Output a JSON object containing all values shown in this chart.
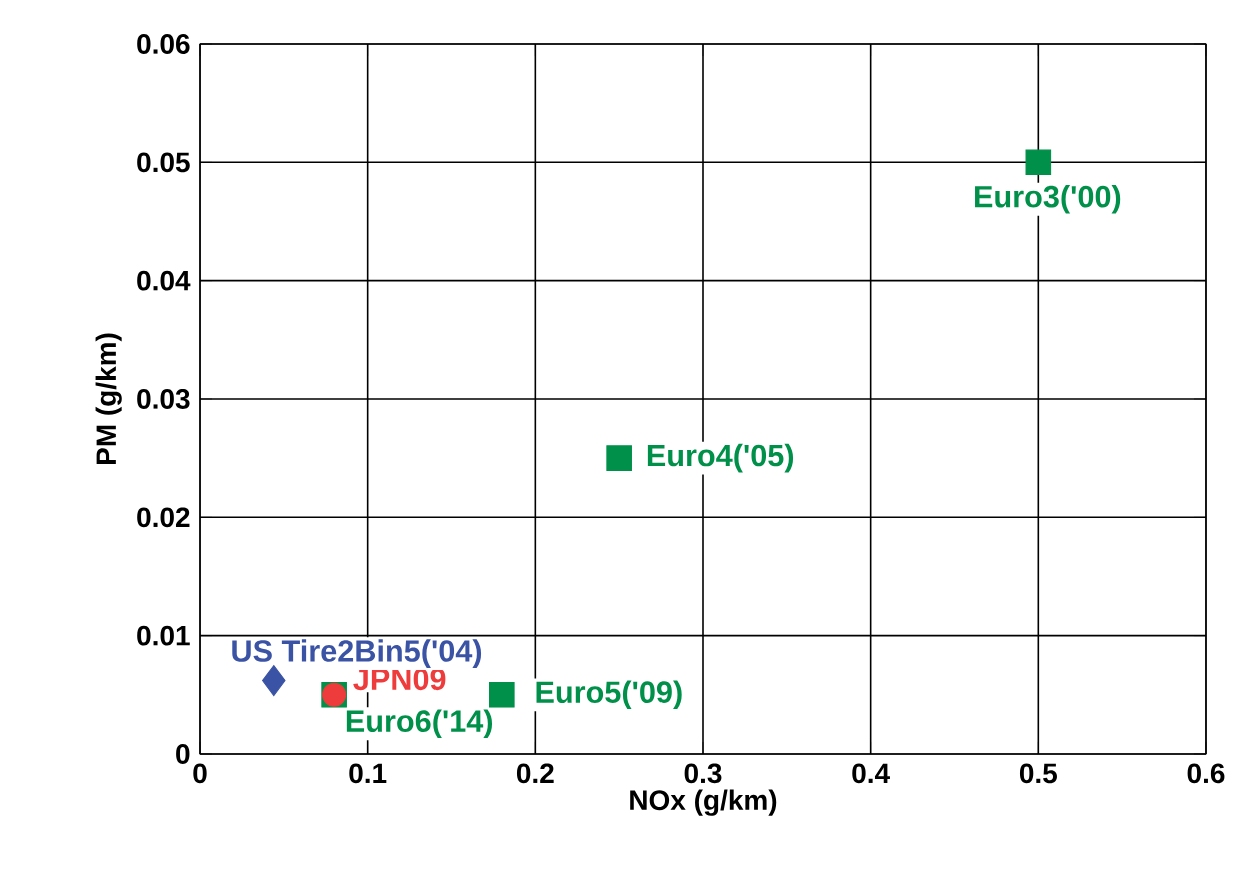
{
  "chart_data": {
    "type": "scatter",
    "xlabel": "NOx (g/km)",
    "ylabel": "PM (g/km)",
    "xlim": [
      0,
      0.6
    ],
    "ylim": [
      0,
      0.06
    ],
    "xticks": [
      0,
      0.1,
      0.2,
      0.3,
      0.4,
      0.5,
      0.6
    ],
    "yticks": [
      0,
      0.01,
      0.02,
      0.03,
      0.04,
      0.05,
      0.06
    ],
    "grid": true,
    "series": [
      {
        "name": "Euro3('00)",
        "color": "#00904a",
        "marker": "square",
        "x": [
          0.5
        ],
        "values": [
          0.05
        ]
      },
      {
        "name": "Euro4('05)",
        "color": "#00904a",
        "marker": "square",
        "x": [
          0.25
        ],
        "values": [
          0.025
        ]
      },
      {
        "name": "Euro5('09)",
        "color": "#00904a",
        "marker": "square",
        "x": [
          0.18
        ],
        "values": [
          0.005
        ]
      },
      {
        "name": "Euro6('14)",
        "color": "#00904a",
        "marker": "square",
        "x": [
          0.08
        ],
        "values": [
          0.005
        ]
      },
      {
        "name": "JPN09",
        "color": "#ee3b3b",
        "marker": "circle",
        "x": [
          0.08
        ],
        "values": [
          0.005
        ]
      },
      {
        "name": "US Tire2Bin5('04)",
        "color": "#3a53a4",
        "marker": "diamond",
        "x": [
          0.044
        ],
        "values": [
          0.0062
        ]
      }
    ]
  }
}
